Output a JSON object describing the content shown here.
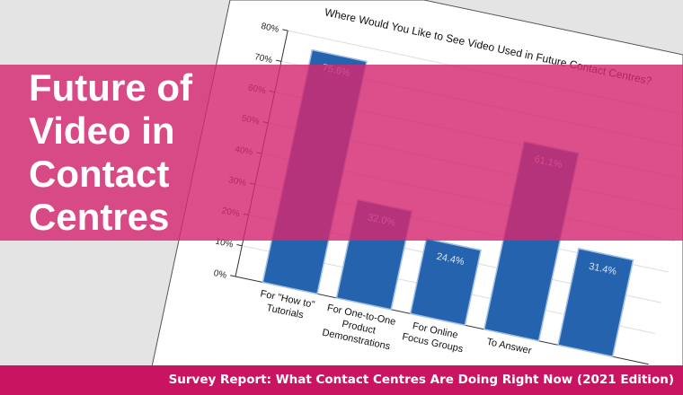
{
  "headline": {
    "line1": "Future of Video in",
    "line2": "Contact Centres"
  },
  "footer": {
    "text": "Survey Report: What Contact Centres Are Doing Right Now (2021 Edition)"
  },
  "colors": {
    "band": "#d62870",
    "footer": "#c81461",
    "bar": "#2563ae",
    "background": "#e4e4e4"
  },
  "chart_data": {
    "type": "bar",
    "title": "Where Would You Like to See Video Used in Future Contact Centres?",
    "categories": [
      [
        "For \"How to\"",
        "Tutorials"
      ],
      [
        "For One-to-One",
        "Product",
        "Demonstrations"
      ],
      [
        "For Online",
        "Focus Groups"
      ],
      [
        "To Answer"
      ],
      [
        ""
      ]
    ],
    "values": [
      75.6,
      32.0,
      24.4,
      61.1,
      31.4
    ],
    "value_labels": [
      "75.6%",
      "32.0%",
      "24.4%",
      "61.1%",
      "31.4%"
    ],
    "yticks": [
      "0%",
      "10%",
      "20%",
      "30%",
      "40%",
      "50%",
      "60%",
      "70%",
      "80%"
    ],
    "ylim": [
      0,
      80
    ],
    "grid": true
  }
}
